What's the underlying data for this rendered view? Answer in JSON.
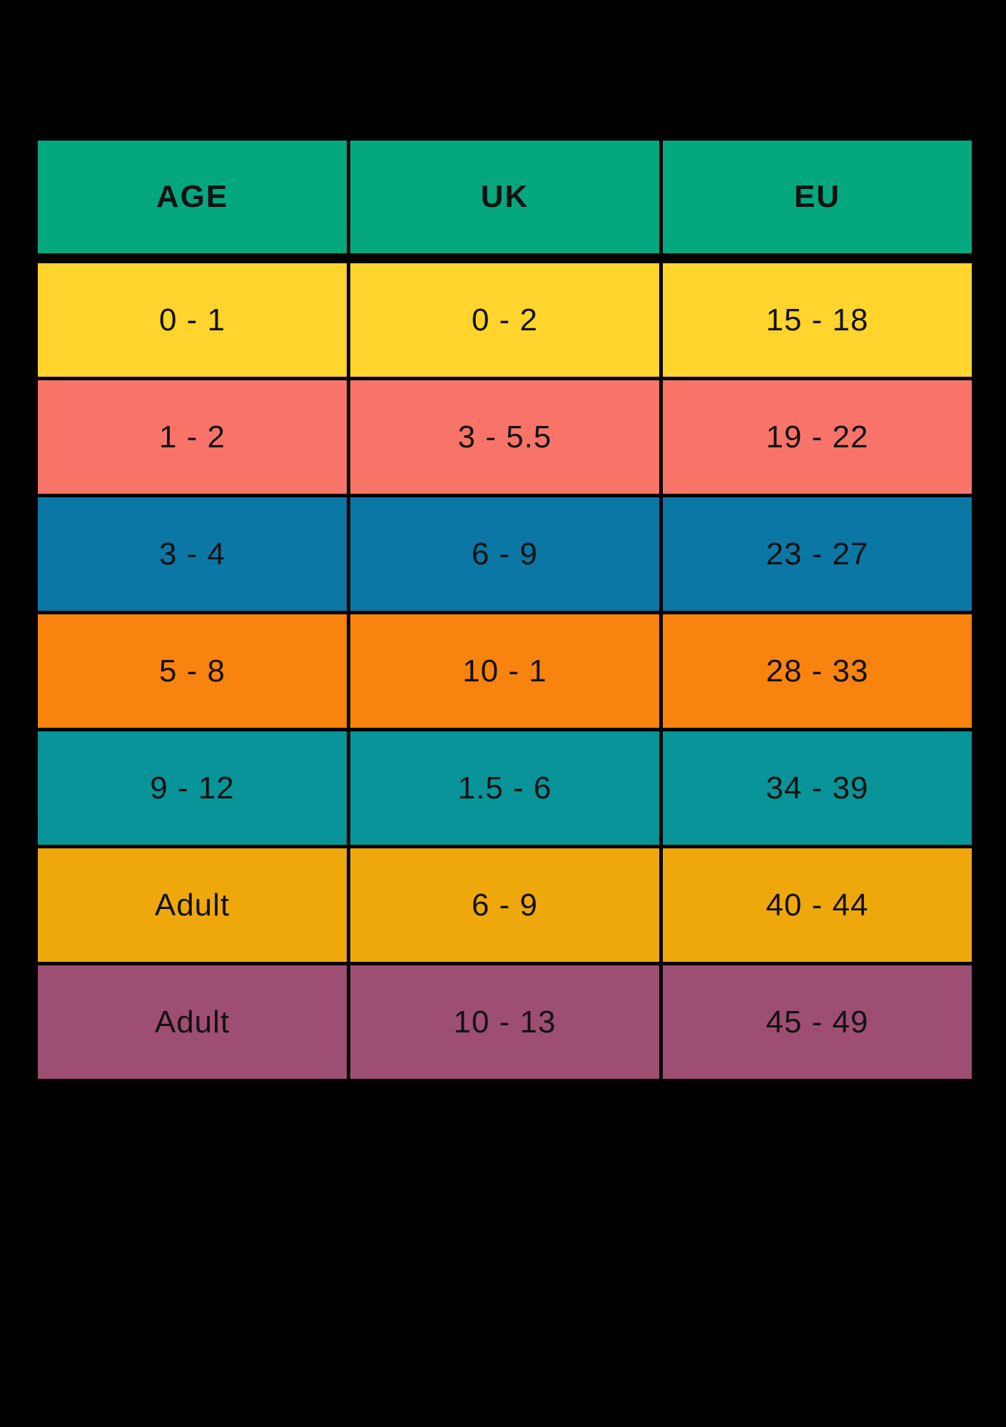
{
  "page": {
    "background_color": "#000000"
  },
  "chart_data": {
    "type": "table",
    "columns": [
      "AGE",
      "UK",
      "EU"
    ],
    "rows": [
      [
        "0 - 1",
        "0 - 2",
        "15 - 18"
      ],
      [
        "1 - 2",
        "3 - 5.5",
        "19 - 22"
      ],
      [
        "3 - 4",
        "6 - 9",
        "23 - 27"
      ],
      [
        "5 - 8",
        "10 - 1",
        "28 - 33"
      ],
      [
        "9 - 12",
        "1.5 - 6",
        "34 - 39"
      ],
      [
        "Adult",
        "6 - 9",
        "40 - 44"
      ],
      [
        "Adult",
        "10 - 13",
        "45 - 49"
      ]
    ],
    "header_color": "#05A87E",
    "row_colors": [
      "#FFD42C",
      "#F97468",
      "#0B77A5",
      "#F9830F",
      "#089498",
      "#EFA80C",
      "#9F4E73"
    ],
    "text_color": "#121212",
    "grid": true,
    "legend": "none",
    "background_color": "#000000"
  }
}
